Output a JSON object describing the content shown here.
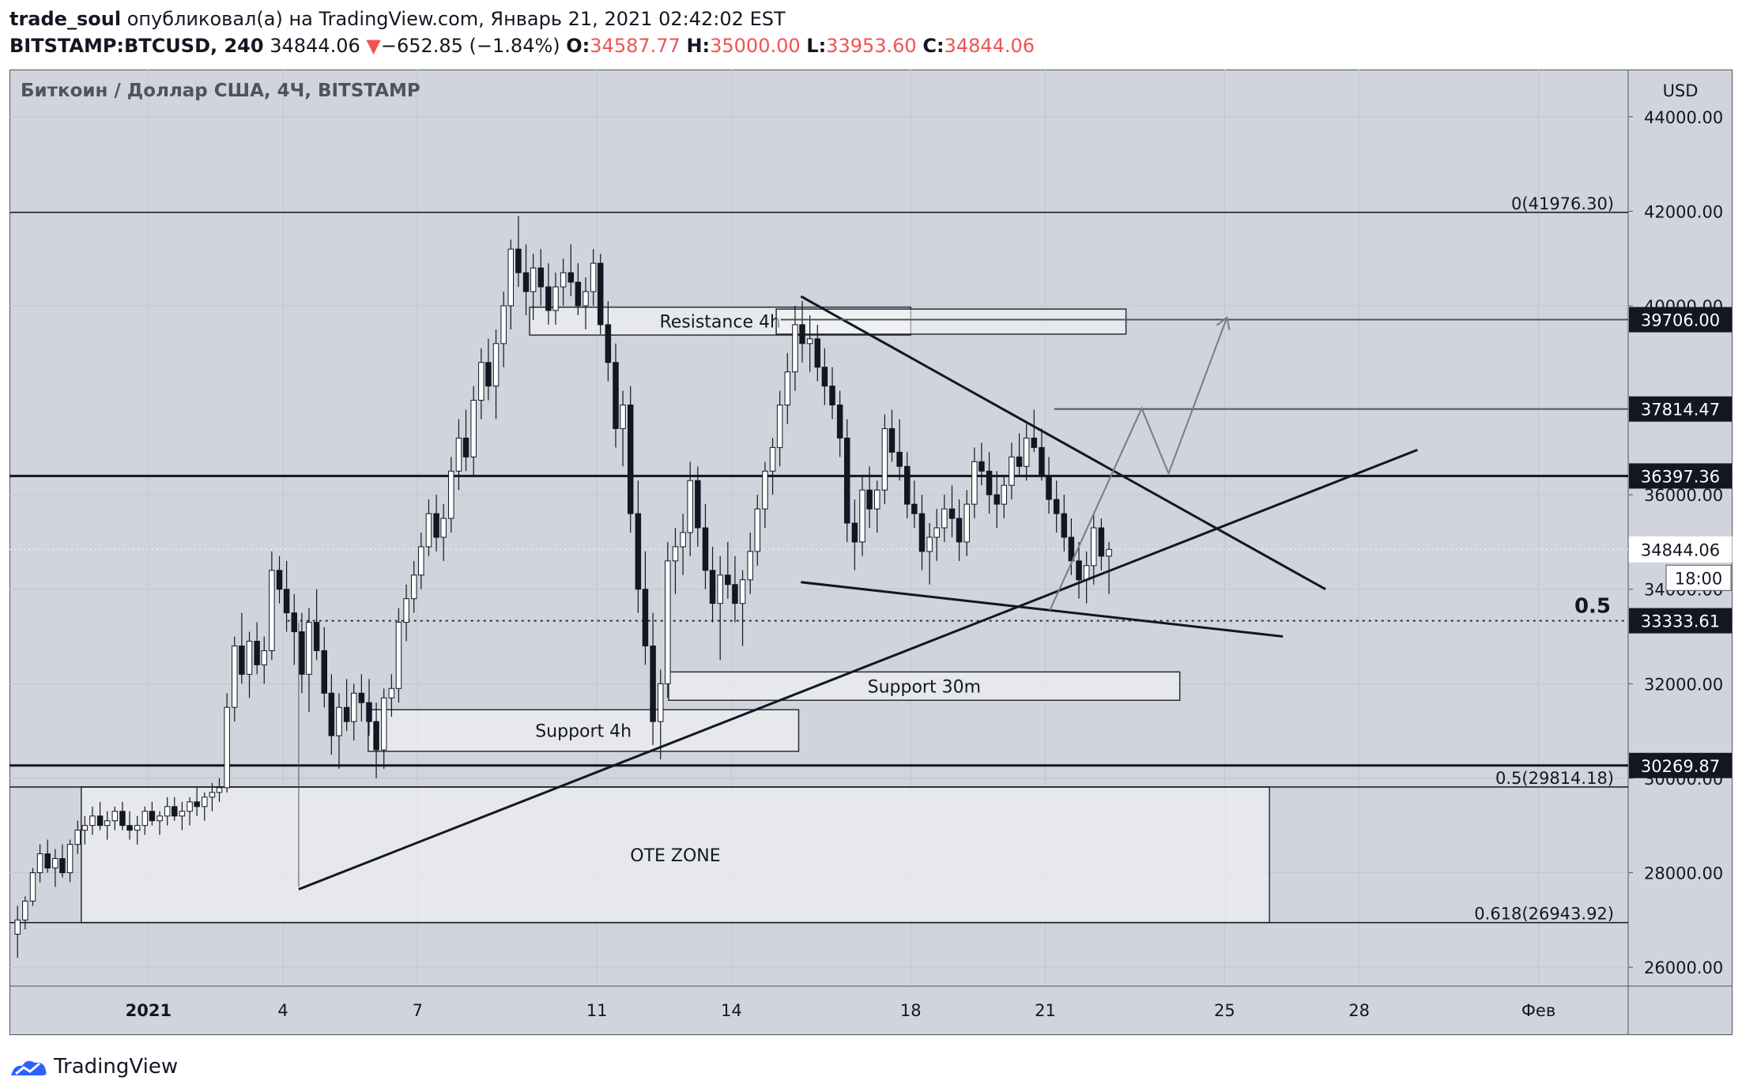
{
  "header": {
    "author": "trade_soul",
    "published": "опубликовал(а) на TradingView.com, Январь 21, 2021 02:42:02 EST",
    "symbol": "BITSTAMP:BTCUSD, 240",
    "last": "34844.06",
    "change_arrow": "▼",
    "change": "−652.85 (−1.84%)",
    "o_label": "O:",
    "o": "34587.77",
    "h_label": "H:",
    "h": "35000.00",
    "l_label": "L:",
    "l": "33953.60",
    "c_label": "C:",
    "c": "34844.06"
  },
  "footer": {
    "brand": "TradingView",
    "logo_icon": "tradingview-logo-icon"
  },
  "colors": {
    "background": "#d1d4dc",
    "up": "#ffffff",
    "down": "#131722",
    "accent_red": "#ef5350"
  },
  "chart_data": {
    "type": "candlestick",
    "title": "Биткоин / Доллар США, 4Ч, BITSTAMP",
    "currency": "USD",
    "y_range": [
      25600,
      45000
    ],
    "y_ticks": [
      {
        "v": 26000,
        "t": "26000.00"
      },
      {
        "v": 28000,
        "t": "28000.00"
      },
      {
        "v": 30000,
        "t": "30000.00"
      },
      {
        "v": 32000,
        "t": "32000.00"
      },
      {
        "v": 34000,
        "t": "34000.00"
      },
      {
        "v": 36000,
        "t": "36000.00"
      },
      {
        "v": 40000,
        "t": "40000.00"
      },
      {
        "v": 42000,
        "t": "42000.00"
      },
      {
        "v": 44000,
        "t": "44000.00"
      }
    ],
    "x_range_days": [
      -3.1,
      33.0
    ],
    "x_ticks": [
      {
        "d": 0,
        "t": "2021"
      },
      {
        "d": 3,
        "t": "4"
      },
      {
        "d": 6,
        "t": "7"
      },
      {
        "d": 10,
        "t": "11"
      },
      {
        "d": 13,
        "t": "14"
      },
      {
        "d": 17,
        "t": "18"
      },
      {
        "d": 20,
        "t": "21"
      },
      {
        "d": 24,
        "t": "25"
      },
      {
        "d": 27,
        "t": "28"
      },
      {
        "d": 31,
        "t": "Фев"
      }
    ],
    "price_labels": [
      {
        "v": 39706.0,
        "t": "39706.00",
        "style": "line"
      },
      {
        "v": 37814.47,
        "t": "37814.47",
        "style": "line"
      },
      {
        "v": 36397.36,
        "t": "36397.36",
        "style": "line"
      },
      {
        "v": 34844.06,
        "t": "34844.06",
        "style": "last"
      },
      {
        "v": 33333.61,
        "t": "33333.61",
        "style": "fib"
      },
      {
        "v": 30269.87,
        "t": "30269.87",
        "style": "line"
      }
    ],
    "countdown": "18:00",
    "horizontal_lines": [
      {
        "v": 41976.3,
        "label": "0(41976.30)",
        "width": 1.5
      },
      {
        "v": 36397.36,
        "label": "",
        "width": 3
      },
      {
        "v": 30269.87,
        "label": "",
        "width": 3
      },
      {
        "v": 29814.18,
        "label": "0.5(29814.18)",
        "width": 1.5
      },
      {
        "v": 26943.92,
        "label": "0.618(26943.92)",
        "width": 1.5
      }
    ],
    "fib_dotted": {
      "v": 33333.61,
      "label": "0.5",
      "d1": 3.1
    },
    "zones": [
      {
        "label": "Resistance 4h",
        "d1": 8.5,
        "d2": 17.0,
        "v1": 39970,
        "v2": 39380
      },
      {
        "label": "",
        "d1": 14.0,
        "d2": 21.8,
        "v1": 39930,
        "v2": 39400
      },
      {
        "label": "Support 30m",
        "d1": 11.6,
        "d2": 23.0,
        "v1": 32250,
        "v2": 31650
      },
      {
        "label": "Support 4h",
        "d1": 4.9,
        "d2": 14.5,
        "v1": 31450,
        "v2": 30570
      },
      {
        "label": "OTE ZONE",
        "d1": -1.5,
        "d2": 25.0,
        "v1": 29814.18,
        "v2": 26943.92
      }
    ],
    "trendlines": [
      {
        "from": [
          14.55,
          40200
        ],
        "to": [
          26.25,
          34000
        ],
        "width": 3
      },
      {
        "from": [
          14.55,
          34150
        ],
        "to": [
          25.3,
          33000
        ],
        "width": 3
      },
      {
        "from": [
          3.35,
          27650
        ],
        "to": [
          28.3,
          36950
        ],
        "width": 3
      },
      {
        "from": [
          3.35,
          33300
        ],
        "to": [
          3.35,
          27700
        ],
        "width": 1
      },
      {
        "from": [
          20.2,
          37814.47
        ],
        "to": [
          33.0,
          37814.47
        ],
        "width": 2
      },
      {
        "from": [
          14.1,
          39706.0
        ],
        "to": [
          33.0,
          39706.0
        ],
        "width": 2
      }
    ],
    "projection": [
      [
        20.1,
        33550
      ],
      [
        22.15,
        37830
      ],
      [
        22.75,
        36450
      ],
      [
        24.05,
        39750
      ]
    ],
    "candles": [
      [
        -2.92,
        26700,
        27300,
        26200,
        27000
      ],
      [
        -2.75,
        27000,
        27500,
        26800,
        27400
      ],
      [
        -2.58,
        27400,
        28100,
        27300,
        28000
      ],
      [
        -2.42,
        28000,
        28600,
        27800,
        28400
      ],
      [
        -2.25,
        28400,
        28700,
        28000,
        28100
      ],
      [
        -2.08,
        28100,
        28500,
        27700,
        28300
      ],
      [
        -1.92,
        28300,
        28600,
        27900,
        28000
      ],
      [
        -1.75,
        28000,
        28700,
        27800,
        28600
      ],
      [
        -1.58,
        28600,
        29100,
        28400,
        28900
      ],
      [
        -1.42,
        28900,
        29200,
        28600,
        29000
      ],
      [
        -1.25,
        29000,
        29400,
        28800,
        29200
      ],
      [
        -1.08,
        29200,
        29500,
        28900,
        29000
      ],
      [
        -0.92,
        29000,
        29300,
        28700,
        29100
      ],
      [
        -0.75,
        29100,
        29400,
        28900,
        29300
      ],
      [
        -0.58,
        29300,
        29500,
        28900,
        29000
      ],
      [
        -0.42,
        29000,
        29300,
        28700,
        28900
      ],
      [
        -0.25,
        28900,
        29200,
        28600,
        29000
      ],
      [
        -0.08,
        29000,
        29400,
        28800,
        29300
      ],
      [
        0.08,
        29300,
        29500,
        29000,
        29100
      ],
      [
        0.25,
        29100,
        29300,
        28800,
        29200
      ],
      [
        0.42,
        29200,
        29600,
        29000,
        29400
      ],
      [
        0.58,
        29400,
        29600,
        29100,
        29200
      ],
      [
        0.75,
        29200,
        29500,
        28900,
        29300
      ],
      [
        0.92,
        29300,
        29600,
        29000,
        29500
      ],
      [
        1.08,
        29500,
        29800,
        29200,
        29400
      ],
      [
        1.25,
        29400,
        29700,
        29100,
        29600
      ],
      [
        1.42,
        29600,
        29900,
        29300,
        29700
      ],
      [
        1.58,
        29700,
        30000,
        29500,
        29800
      ],
      [
        1.75,
        29800,
        31800,
        29700,
        31500
      ],
      [
        1.92,
        31500,
        33000,
        31200,
        32800
      ],
      [
        2.08,
        32800,
        33500,
        32000,
        32200
      ],
      [
        2.25,
        32200,
        33100,
        31700,
        32900
      ],
      [
        2.42,
        32900,
        33300,
        32200,
        32400
      ],
      [
        2.58,
        32400,
        33000,
        32000,
        32700
      ],
      [
        2.75,
        32700,
        34800,
        32500,
        34400
      ],
      [
        2.92,
        34400,
        34700,
        33700,
        34000
      ],
      [
        3.08,
        34000,
        34600,
        33100,
        33500
      ],
      [
        3.25,
        33500,
        33900,
        32400,
        33100
      ],
      [
        3.42,
        33100,
        33500,
        31800,
        32200
      ],
      [
        3.58,
        32200,
        33600,
        31400,
        33300
      ],
      [
        3.75,
        33300,
        34000,
        32500,
        32700
      ],
      [
        3.92,
        32700,
        33200,
        31500,
        31800
      ],
      [
        4.08,
        31800,
        32200,
        30500,
        30900
      ],
      [
        4.25,
        30900,
        31800,
        30200,
        31500
      ],
      [
        4.42,
        31500,
        32100,
        31000,
        31200
      ],
      [
        4.58,
        31200,
        32000,
        30800,
        31800
      ],
      [
        4.75,
        31800,
        32200,
        31200,
        31600
      ],
      [
        4.92,
        31600,
        32100,
        30900,
        31200
      ],
      [
        5.08,
        31200,
        31600,
        30000,
        30600
      ],
      [
        5.25,
        30600,
        31900,
        30200,
        31700
      ],
      [
        5.42,
        31700,
        32200,
        31300,
        31900
      ],
      [
        5.58,
        31900,
        33600,
        31600,
        33300
      ],
      [
        5.75,
        33300,
        34100,
        32900,
        33800
      ],
      [
        5.92,
        33800,
        34600,
        33500,
        34300
      ],
      [
        6.08,
        34300,
        35200,
        34000,
        34900
      ],
      [
        6.25,
        34900,
        35900,
        34700,
        35600
      ],
      [
        6.42,
        35600,
        36000,
        34800,
        35100
      ],
      [
        6.58,
        35100,
        35800,
        34600,
        35500
      ],
      [
        6.75,
        35500,
        36800,
        35200,
        36500
      ],
      [
        6.92,
        36500,
        37600,
        36100,
        37200
      ],
      [
        7.08,
        37200,
        37800,
        36500,
        36800
      ],
      [
        7.25,
        36800,
        38300,
        36400,
        38000
      ],
      [
        7.42,
        38000,
        39100,
        37600,
        38800
      ],
      [
        7.58,
        38800,
        39300,
        38000,
        38300
      ],
      [
        7.75,
        38300,
        39500,
        37600,
        39200
      ],
      [
        7.92,
        39200,
        40300,
        38700,
        40000
      ],
      [
        8.08,
        40000,
        41400,
        39500,
        41200
      ],
      [
        8.25,
        41200,
        41900,
        40400,
        40700
      ],
      [
        8.42,
        40700,
        41300,
        39800,
        40300
      ],
      [
        8.58,
        40300,
        41100,
        39700,
        40800
      ],
      [
        8.75,
        40800,
        41200,
        40000,
        40400
      ],
      [
        8.92,
        40400,
        40900,
        39600,
        39900
      ],
      [
        9.08,
        39900,
        40700,
        39600,
        40400
      ],
      [
        9.25,
        40400,
        41000,
        40000,
        40700
      ],
      [
        9.42,
        40700,
        41300,
        40200,
        40500
      ],
      [
        9.58,
        40500,
        40900,
        39800,
        40000
      ],
      [
        9.75,
        40000,
        40600,
        39500,
        40300
      ],
      [
        9.92,
        40300,
        41200,
        40000,
        40900
      ],
      [
        10.08,
        40900,
        41100,
        39400,
        39600
      ],
      [
        10.25,
        39600,
        40100,
        38400,
        38800
      ],
      [
        10.42,
        38800,
        39200,
        37000,
        37400
      ],
      [
        10.58,
        37400,
        38200,
        36600,
        37900
      ],
      [
        10.75,
        37900,
        38300,
        35200,
        35600
      ],
      [
        10.92,
        35600,
        36300,
        33500,
        34000
      ],
      [
        11.08,
        34000,
        34800,
        32400,
        32800
      ],
      [
        11.25,
        32800,
        33500,
        30700,
        31200
      ],
      [
        11.42,
        31200,
        32300,
        30400,
        32000
      ],
      [
        11.58,
        32000,
        35000,
        31700,
        34600
      ],
      [
        11.75,
        34600,
        35300,
        33900,
        34900
      ],
      [
        11.92,
        34900,
        35600,
        34300,
        35200
      ],
      [
        12.08,
        35200,
        36700,
        34700,
        36300
      ],
      [
        12.25,
        36300,
        36600,
        34900,
        35300
      ],
      [
        12.42,
        35300,
        35800,
        34000,
        34400
      ],
      [
        12.58,
        34400,
        34900,
        33300,
        33700
      ],
      [
        12.75,
        33700,
        34700,
        32500,
        34300
      ],
      [
        12.92,
        34300,
        35000,
        33800,
        34100
      ],
      [
        13.08,
        34100,
        34700,
        33300,
        33700
      ],
      [
        13.25,
        33700,
        34400,
        32800,
        34200
      ],
      [
        13.42,
        34200,
        35200,
        33900,
        34800
      ],
      [
        13.58,
        34800,
        36000,
        34500,
        35700
      ],
      [
        13.75,
        35700,
        36700,
        35300,
        36500
      ],
      [
        13.92,
        36500,
        37200,
        36000,
        37000
      ],
      [
        14.08,
        37000,
        38200,
        36600,
        37900
      ],
      [
        14.25,
        37900,
        39000,
        37500,
        38600
      ],
      [
        14.42,
        38600,
        40000,
        38200,
        39600
      ],
      [
        14.58,
        39600,
        40100,
        38800,
        39200
      ],
      [
        14.75,
        39200,
        39800,
        38600,
        39300
      ],
      [
        14.92,
        39300,
        39600,
        38400,
        38700
      ],
      [
        15.08,
        38700,
        39100,
        37900,
        38300
      ],
      [
        15.25,
        38300,
        38700,
        37600,
        37900
      ],
      [
        15.42,
        37900,
        38200,
        36800,
        37200
      ],
      [
        15.58,
        37200,
        37600,
        35000,
        35400
      ],
      [
        15.75,
        35400,
        35900,
        34400,
        35000
      ],
      [
        15.92,
        35000,
        36400,
        34700,
        36100
      ],
      [
        16.08,
        36100,
        36600,
        35300,
        35700
      ],
      [
        16.25,
        35700,
        36300,
        35200,
        36100
      ],
      [
        16.42,
        36100,
        37700,
        35800,
        37400
      ],
      [
        16.58,
        37400,
        37800,
        36700,
        36900
      ],
      [
        16.75,
        36900,
        37600,
        36300,
        36600
      ],
      [
        16.92,
        36600,
        36900,
        35500,
        35800
      ],
      [
        17.08,
        35800,
        36300,
        35300,
        35600
      ],
      [
        17.25,
        35600,
        36000,
        34400,
        34800
      ],
      [
        17.42,
        34800,
        35400,
        34100,
        35100
      ],
      [
        17.58,
        35100,
        35700,
        34600,
        35300
      ],
      [
        17.75,
        35300,
        36000,
        35000,
        35700
      ],
      [
        17.92,
        35700,
        36200,
        35100,
        35500
      ],
      [
        18.08,
        35500,
        35900,
        34600,
        35000
      ],
      [
        18.25,
        35000,
        36100,
        34700,
        35800
      ],
      [
        18.42,
        35800,
        37000,
        35500,
        36700
      ],
      [
        18.58,
        36700,
        37100,
        36200,
        36500
      ],
      [
        18.75,
        36500,
        36900,
        35600,
        36000
      ],
      [
        18.92,
        36000,
        36500,
        35300,
        35800
      ],
      [
        19.08,
        35800,
        36400,
        35500,
        36200
      ],
      [
        19.25,
        36200,
        37100,
        35900,
        36800
      ],
      [
        19.42,
        36800,
        37300,
        36400,
        36600
      ],
      [
        19.58,
        36600,
        37500,
        36300,
        37200
      ],
      [
        19.75,
        37200,
        37800,
        36900,
        37000
      ],
      [
        19.92,
        37000,
        37400,
        36300,
        36400
      ],
      [
        20.08,
        36400,
        36800,
        35600,
        35900
      ],
      [
        20.25,
        35900,
        36300,
        35200,
        35600
      ],
      [
        20.42,
        35600,
        36000,
        34800,
        35100
      ],
      [
        20.58,
        35100,
        35500,
        34300,
        34600
      ],
      [
        20.75,
        34600,
        35000,
        33800,
        34200
      ],
      [
        20.92,
        34200,
        34800,
        33700,
        34500
      ],
      [
        21.08,
        34500,
        35600,
        34100,
        35300
      ],
      [
        21.25,
        35300,
        35500,
        34400,
        34700
      ],
      [
        21.42,
        34700,
        35000,
        33900,
        34844
      ]
    ]
  }
}
